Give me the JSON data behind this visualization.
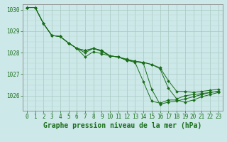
{
  "title": "Graphe pression niveau de la mer (hPa)",
  "hours": [
    0,
    1,
    2,
    3,
    4,
    5,
    6,
    7,
    8,
    9,
    10,
    11,
    12,
    13,
    14,
    15,
    16,
    17,
    18,
    19,
    20,
    21,
    22,
    23
  ],
  "series": [
    [
      1030.1,
      1030.1,
      1029.35,
      1028.8,
      1028.75,
      1028.45,
      1028.2,
      1027.8,
      1028.05,
      1027.95,
      1027.85,
      1027.8,
      1027.65,
      1027.55,
      1026.65,
      1025.75,
      1025.65,
      1025.8,
      1025.8,
      1025.7,
      1025.8,
      1025.95,
      1026.05,
      1026.15
    ],
    [
      1030.1,
      1030.1,
      1029.35,
      1028.8,
      1028.75,
      1028.45,
      1028.2,
      1028.0,
      1028.2,
      1028.05,
      1027.85,
      1027.8,
      1027.65,
      1027.6,
      1027.5,
      1026.3,
      1025.6,
      1025.7,
      1025.75,
      1025.85,
      1025.95,
      1026.05,
      1026.15,
      1026.2
    ],
    [
      1030.1,
      1030.1,
      1029.35,
      1028.8,
      1028.75,
      1028.45,
      1028.2,
      1028.1,
      1028.2,
      1028.1,
      1027.85,
      1027.8,
      1027.65,
      1027.6,
      1027.55,
      1027.45,
      1027.25,
      1026.35,
      1025.85,
      1026.0,
      1026.05,
      1026.1,
      1026.15,
      1026.2
    ],
    [
      1030.1,
      1030.1,
      1029.35,
      1028.8,
      1028.75,
      1028.45,
      1028.2,
      1028.1,
      1028.2,
      1028.1,
      1027.85,
      1027.8,
      1027.7,
      1027.6,
      1027.55,
      1027.45,
      1027.3,
      1026.7,
      1026.2,
      1026.2,
      1026.15,
      1026.2,
      1026.25,
      1026.3
    ]
  ],
  "line_color": "#1a6e1a",
  "marker_color": "#1a6e1a",
  "bg_color": "#cce8e8",
  "grid_color_major": "#a8c8c0",
  "grid_color_minor": "#b8d8d0",
  "axis_color": "#555555",
  "tick_color": "#1a6e1a",
  "ylim": [
    1025.3,
    1030.25
  ],
  "yticks": [
    1026,
    1027,
    1028,
    1029,
    1030
  ],
  "title_color": "#1a6e1a",
  "title_fontsize": 7,
  "tick_fontsize": 5.5,
  "linewidth": 0.7,
  "markersize": 2.0
}
